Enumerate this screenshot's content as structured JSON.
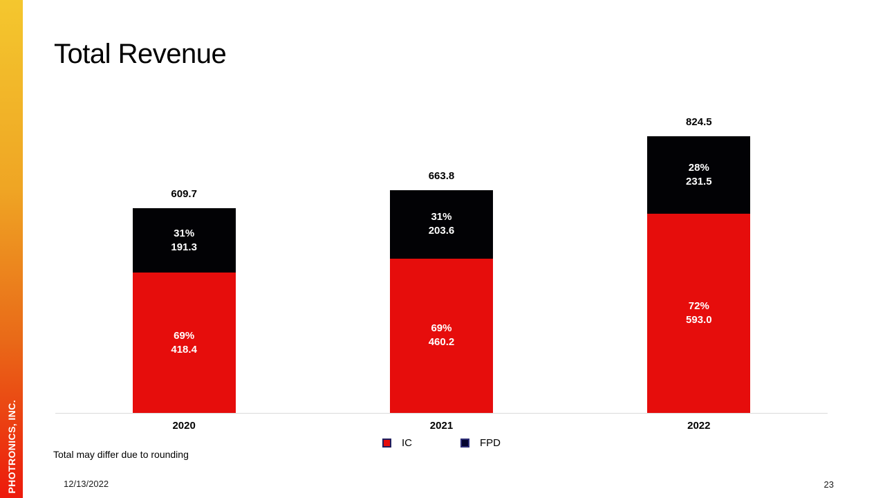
{
  "slide": {
    "title": "Total Revenue",
    "footnote": "Total may differ due to rounding",
    "date": "12/13/2022",
    "page_number": "23",
    "sidebar_text": "PHOTRONICS, INC.",
    "brand_colors": {
      "sidebar_gradient_top": "#F4C72E",
      "sidebar_gradient_bottom": "#ED1A0C",
      "accent_red": "#E60D0C",
      "accent_dark_navy": "#04042E"
    }
  },
  "chart_data": {
    "type": "bar",
    "subtype": "stacked",
    "title": "Total Revenue",
    "xlabel": "",
    "ylabel": "",
    "categories": [
      "2020",
      "2021",
      "2022"
    ],
    "series": [
      {
        "name": "IC",
        "color": "#E60D0C",
        "values": [
          418.4,
          460.2,
          593.0
        ],
        "pct_labels": [
          "69%",
          "69%",
          "72%"
        ]
      },
      {
        "name": "FPD",
        "color": "#020205",
        "values": [
          191.3,
          203.6,
          231.5
        ],
        "pct_labels": [
          "31%",
          "31%",
          "28%"
        ]
      }
    ],
    "totals": [
      "609.7",
      "663.8",
      "824.5"
    ],
    "legend": [
      {
        "label": "IC",
        "fill": "#E60D0C",
        "border": "#1F1F5F"
      },
      {
        "label": "FPD",
        "fill": "#04042E",
        "border": "#2C2C75"
      }
    ],
    "legend_position": "bottom-center",
    "axis_line_color": "#D9D9D9",
    "ylim": [
      0,
      824.5
    ],
    "gridlines": false,
    "value_label_format": "percent and absolute, white bold, inside segments",
    "total_label_position": "above bars"
  }
}
